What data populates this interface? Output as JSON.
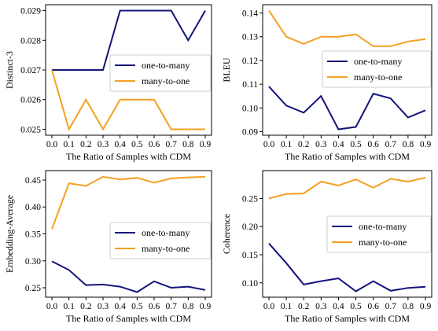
{
  "chart_data": [
    {
      "type": "line",
      "xlabel": "The Ratio of Samples with CDM",
      "ylabel": "Distinct-3",
      "x": [
        0.0,
        0.1,
        0.2,
        0.3,
        0.4,
        0.5,
        0.6,
        0.7,
        0.8,
        0.9
      ],
      "x_ticks": [
        "0.0",
        "0.1",
        "0.2",
        "0.3",
        "0.4",
        "0.5",
        "0.6",
        "0.7",
        "0.8",
        "0.9"
      ],
      "y_ticks": [
        "0.025",
        "0.026",
        "0.027",
        "0.028",
        "0.029"
      ],
      "ylim": [
        0.0248,
        0.0292
      ],
      "legend_position": "center-right",
      "series": [
        {
          "name": "one-to-many",
          "color": "#14147a",
          "values": [
            0.027,
            0.027,
            0.027,
            0.027,
            0.029,
            0.029,
            0.029,
            0.029,
            0.028,
            0.029
          ]
        },
        {
          "name": "many-to-one",
          "color": "#f5a020",
          "values": [
            0.027,
            0.025,
            0.026,
            0.025,
            0.026,
            0.026,
            0.026,
            0.025,
            0.025,
            0.025
          ]
        }
      ]
    },
    {
      "type": "line",
      "xlabel": "The Ratio of Samples with CDM",
      "ylabel": "BLEU",
      "x": [
        0.0,
        0.1,
        0.2,
        0.3,
        0.4,
        0.5,
        0.6,
        0.7,
        0.8,
        0.9
      ],
      "x_ticks": [
        "0.0",
        "0.1",
        "0.2",
        "0.3",
        "0.4",
        "0.5",
        "0.6",
        "0.7",
        "0.8",
        "0.9"
      ],
      "y_ticks": [
        "0.09",
        "0.10",
        "0.11",
        "0.12",
        "0.13",
        "0.14"
      ],
      "ylim": [
        0.0885,
        0.1435
      ],
      "legend_position": "center-right",
      "series": [
        {
          "name": "one-to-many",
          "color": "#14147a",
          "values": [
            0.109,
            0.101,
            0.098,
            0.105,
            0.091,
            0.092,
            0.106,
            0.104,
            0.096,
            0.099
          ]
        },
        {
          "name": "many-to-one",
          "color": "#f5a020",
          "values": [
            0.141,
            0.13,
            0.127,
            0.13,
            0.13,
            0.131,
            0.126,
            0.126,
            0.128,
            0.129
          ]
        }
      ]
    },
    {
      "type": "line",
      "xlabel": "The Ratio of Samples with CDM",
      "ylabel": "Embedding-Average",
      "x": [
        0.0,
        0.1,
        0.2,
        0.3,
        0.4,
        0.5,
        0.6,
        0.7,
        0.8,
        0.9
      ],
      "x_ticks": [
        "0.0",
        "0.1",
        "0.2",
        "0.3",
        "0.4",
        "0.5",
        "0.6",
        "0.7",
        "0.8",
        "0.9"
      ],
      "y_ticks": [
        "0.25",
        "0.30",
        "0.35",
        "0.40",
        "0.45"
      ],
      "ylim": [
        0.2325,
        0.4675
      ],
      "legend_position": "center-right",
      "series": [
        {
          "name": "one-to-many",
          "color": "#14147a",
          "values": [
            0.299,
            0.283,
            0.255,
            0.256,
            0.252,
            0.242,
            0.262,
            0.25,
            0.252,
            0.246
          ]
        },
        {
          "name": "many-to-one",
          "color": "#f5a020",
          "values": [
            0.359,
            0.444,
            0.439,
            0.456,
            0.451,
            0.454,
            0.445,
            0.453,
            0.455,
            0.456
          ]
        }
      ]
    },
    {
      "type": "line",
      "xlabel": "The Ratio of Samples with CDM",
      "ylabel": "Coherence",
      "x": [
        0.0,
        0.1,
        0.2,
        0.3,
        0.4,
        0.5,
        0.6,
        0.7,
        0.8,
        0.9
      ],
      "x_ticks": [
        "0.0",
        "0.1",
        "0.2",
        "0.3",
        "0.4",
        "0.5",
        "0.6",
        "0.7",
        "0.8",
        "0.9"
      ],
      "y_ticks": [
        "0.10",
        "0.15",
        "0.20",
        "0.25"
      ],
      "ylim": [
        0.0745,
        0.2995
      ],
      "legend_position": "center-right",
      "series": [
        {
          "name": "one-to-many",
          "color": "#14147a",
          "values": [
            0.17,
            0.135,
            0.097,
            0.103,
            0.108,
            0.085,
            0.103,
            0.086,
            0.091,
            0.093
          ]
        },
        {
          "name": "many-to-one",
          "color": "#f5a020",
          "values": [
            0.25,
            0.258,
            0.259,
            0.28,
            0.273,
            0.284,
            0.269,
            0.285,
            0.28,
            0.287
          ]
        }
      ]
    }
  ]
}
